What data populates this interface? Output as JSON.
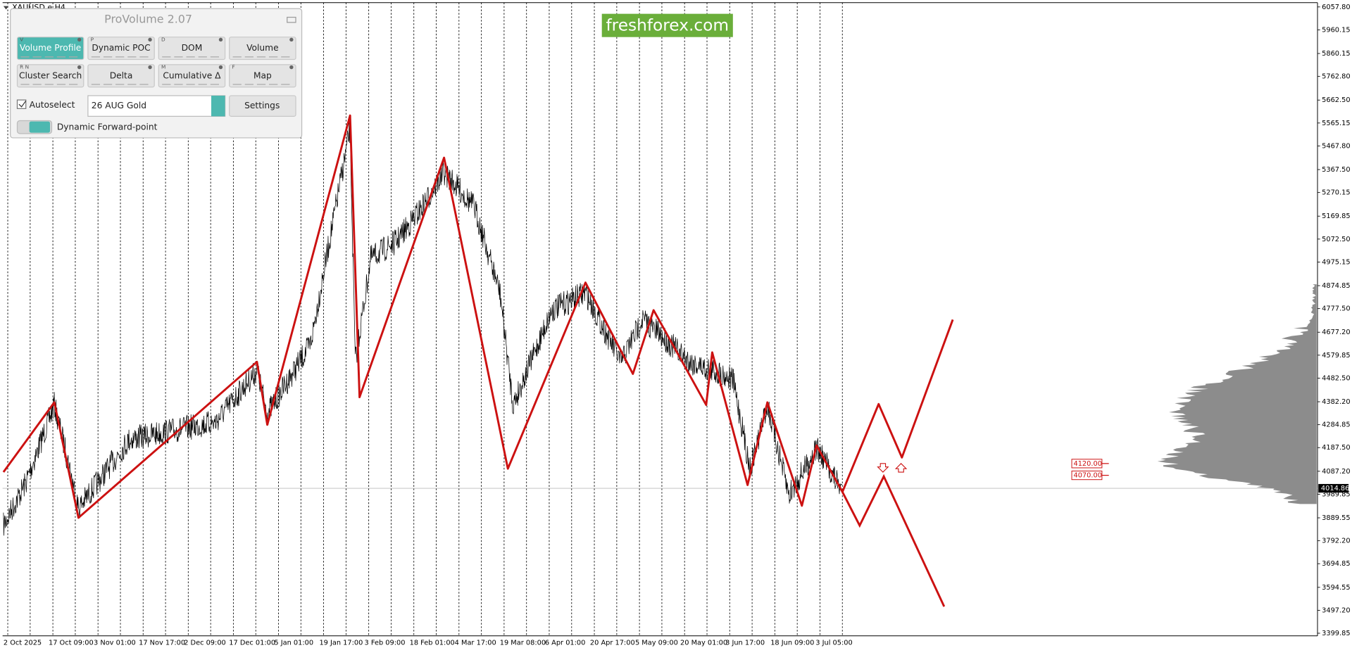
{
  "chart_data": {
    "type": "line",
    "symbol": "XAUUSD,e,H4",
    "watermark": "freshforex.com",
    "categories": [
      "2 Oct 2025",
      "17 Oct 09:00",
      "3 Nov 01:00",
      "17 Nov 17:00",
      "2 Dec 09:00",
      "17 Dec 01:00",
      "5 Jan 01:00",
      "19 Jan 17:00",
      "3 Feb 09:00",
      "18 Feb 01:00",
      "4 Mar 17:00",
      "19 Mar 08:00",
      "6 Apr 01:00",
      "20 Apr 17:00",
      "5 May 09:00",
      "20 May 01:00",
      "3 Jun 17:00",
      "18 Jun 09:00",
      "3 Jul 05:00"
    ],
    "ylim": [
      3388.9,
      6076.1
    ],
    "yticks": [
      {
        "value": 6057.8,
        "label": "6057.80"
      },
      5960.15,
      5860.15,
      {
        "value": 5762.8,
        "label": "5762.80"
      },
      {
        "value": 5662.5,
        "label": "5662.50"
      },
      5565.15,
      {
        "value": 5467.8,
        "label": "5467.80"
      },
      {
        "value": 5367.5,
        "label": "5367.50"
      },
      5270.15,
      5169.85,
      {
        "value": 5072.5,
        "label": "5072.50"
      },
      4975.15,
      4874.85,
      {
        "value": 4777.5,
        "label": "4777.50"
      },
      {
        "value": 4677.2,
        "label": "4677.20"
      },
      4579.85,
      {
        "value": 4482.5,
        "label": "4482.50"
      },
      {
        "value": 4382.2,
        "label": "4382.20"
      },
      4284.85,
      {
        "value": 4187.5,
        "label": "4187.50"
      },
      {
        "value": 4087.2,
        "label": "4087.20"
      },
      3989.85,
      3889.55,
      {
        "value": 3792.2,
        "label": "3792.20"
      },
      3694.85,
      3594.55,
      {
        "value": 3497.2,
        "label": "3497.20"
      },
      3399.85
    ],
    "current_price": 4014.86,
    "levels": [
      {
        "value": 4120,
        "label": "4120.00"
      },
      {
        "value": 4070,
        "label": "4070.00"
      }
    ],
    "color": "#cc1111"
  },
  "panel": {
    "title": "ProVolume 2.07",
    "buttons": [
      {
        "key": "V",
        "label": "Volume Profile"
      },
      {
        "key": "P",
        "label": "Dynamic POC"
      },
      {
        "key": "D",
        "label": "DOM"
      },
      {
        "label": "Volume"
      },
      {
        "key": "R N",
        "label": "Cluster Search"
      },
      {
        "label": "Delta"
      },
      {
        "key": "M",
        "label": "Cumulative Δ"
      },
      {
        "key": "F",
        "label": "Map"
      }
    ],
    "autoselect": "Autoselect",
    "instrument": "26 AUG Gold",
    "settings": "Settings",
    "forward_point": "Dynamic Forward-point"
  }
}
